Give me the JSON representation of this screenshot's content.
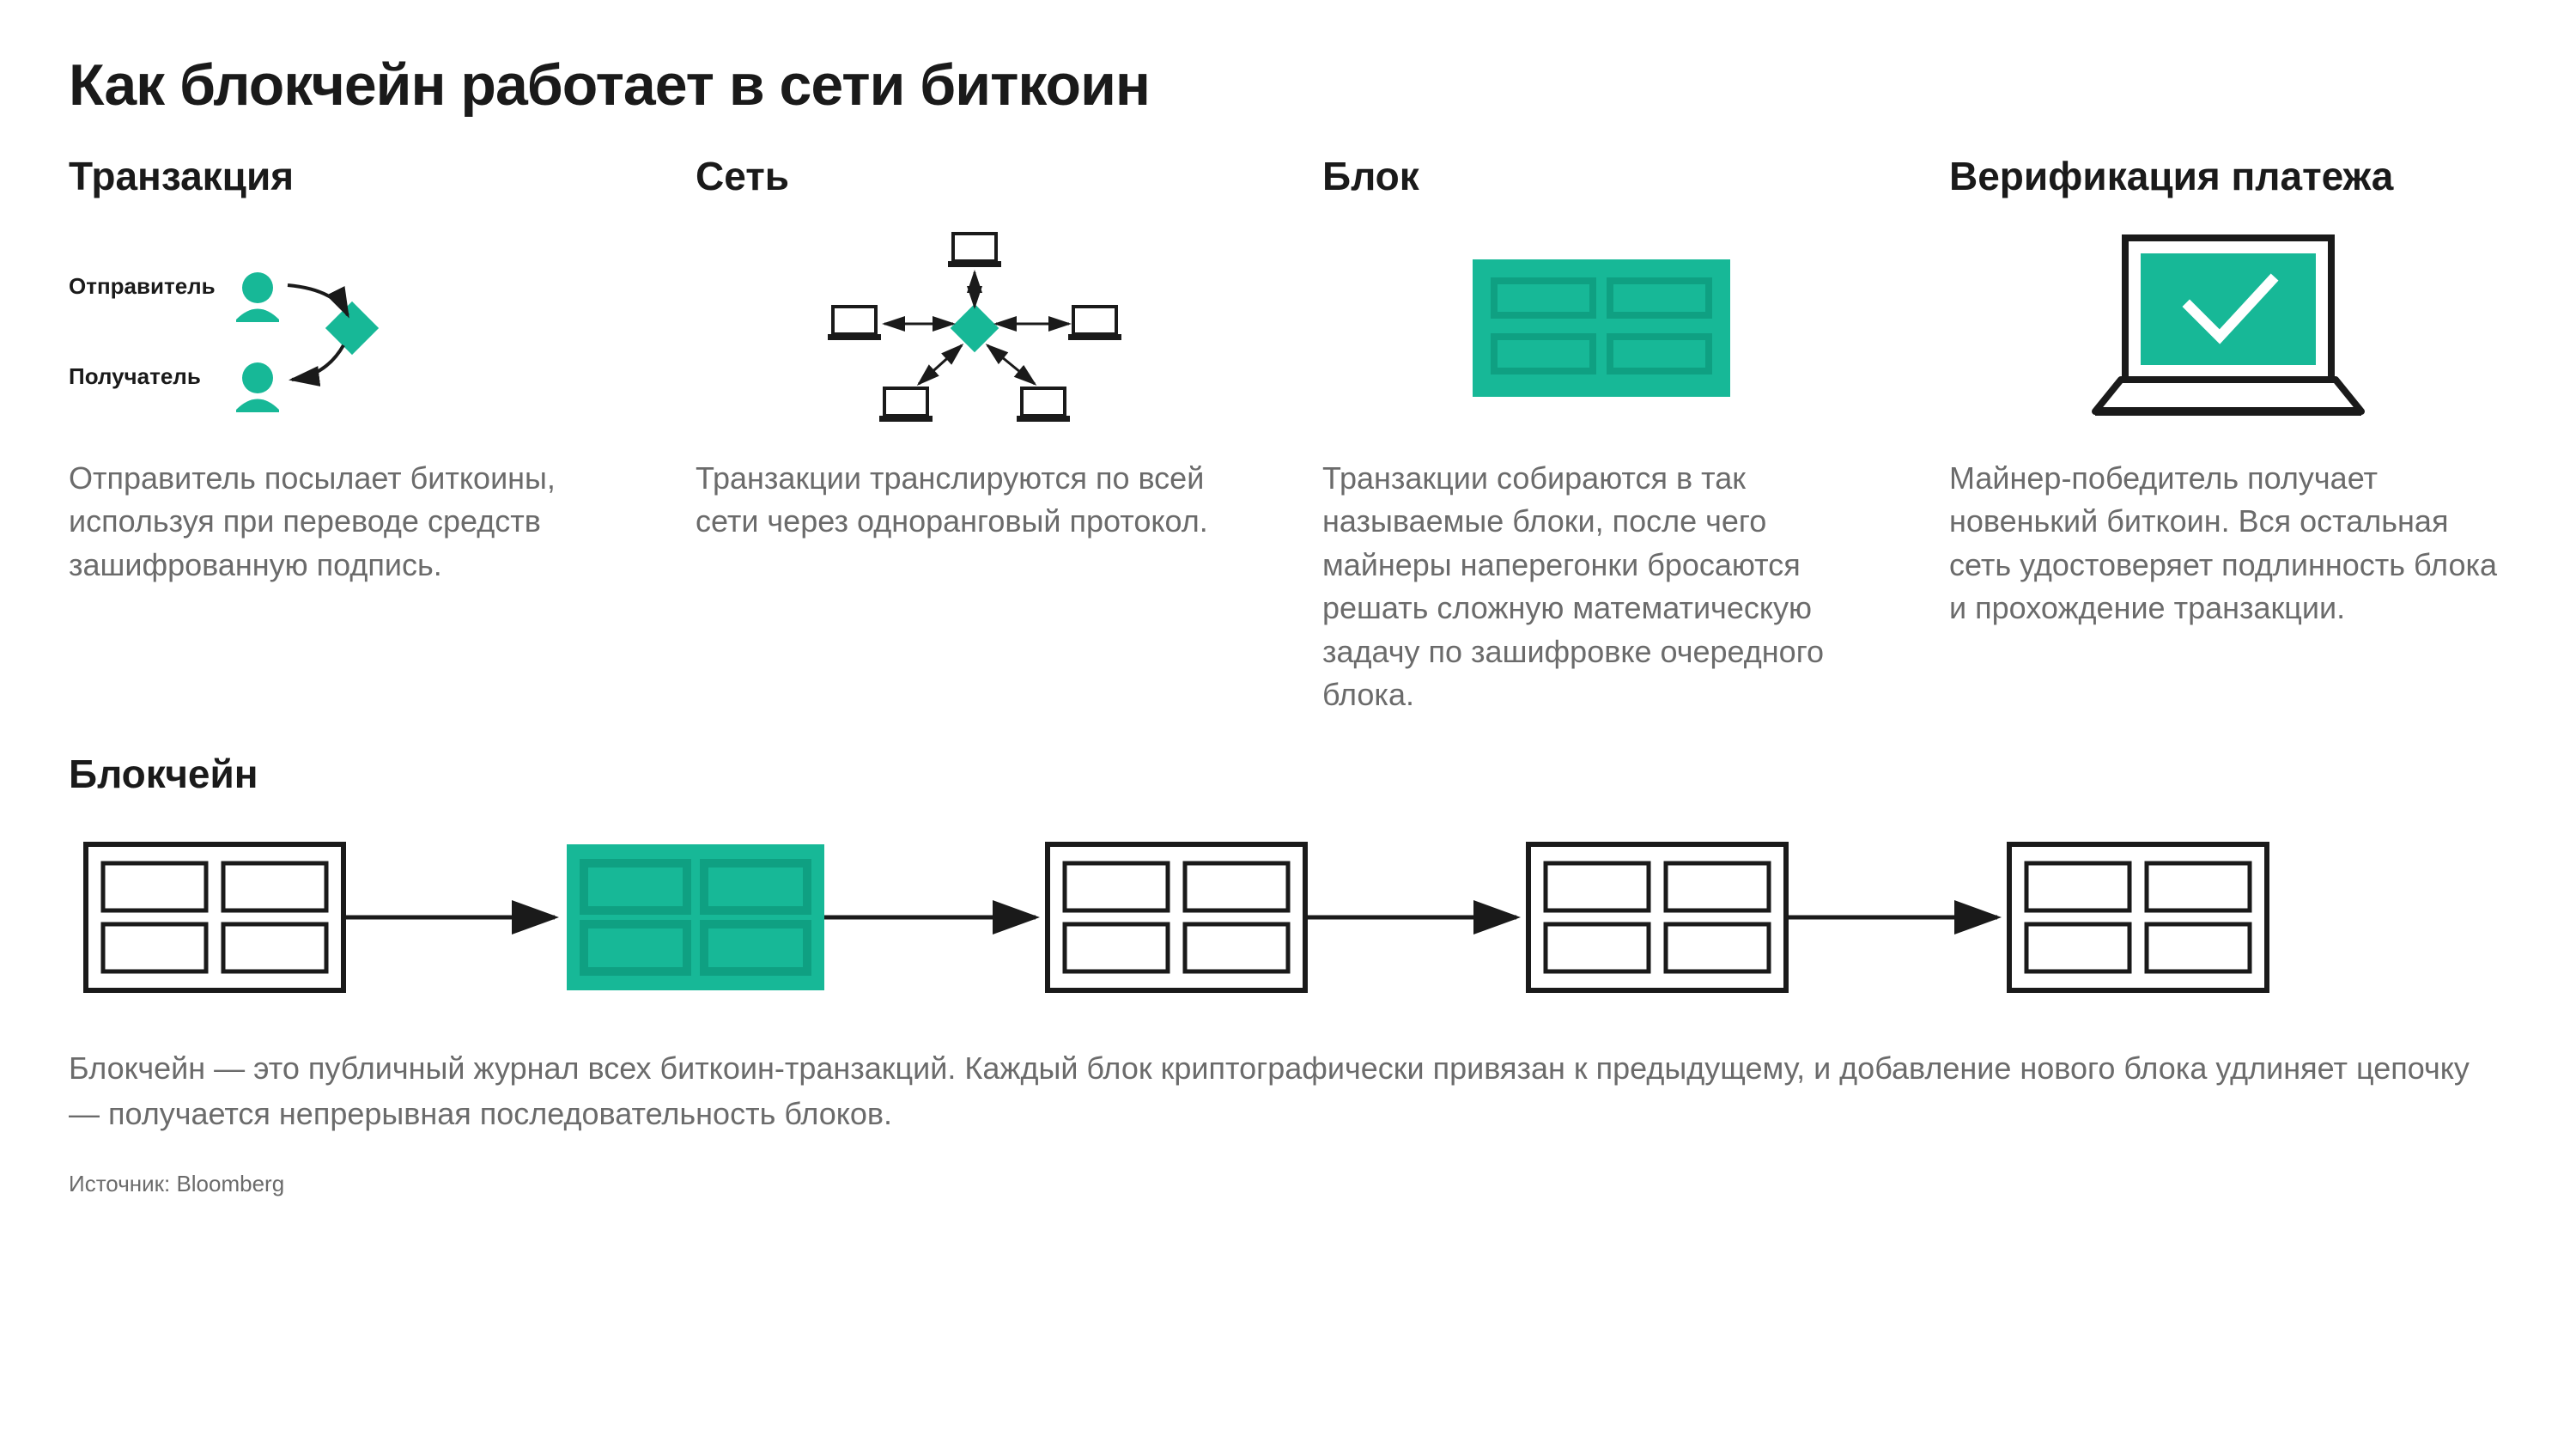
{
  "title": "Как блокчейн работает в сети биткоин",
  "colors": {
    "accent": "#17b897",
    "accent_dark": "#0fa082",
    "stroke": "#1a1a1a",
    "stroke_light": "#4a4a4a",
    "text": "#1a1a1a",
    "text_muted": "#6b6b6b",
    "bg": "#ffffff"
  },
  "steps": [
    {
      "heading": "Транзакция",
      "labels": {
        "sender": "Отправитель",
        "receiver": "Получатель"
      },
      "desc": "Отправитель посылает биткоины, используя при переводе средств зашифрованную подпись."
    },
    {
      "heading": "Сеть",
      "desc": "Транзакции транслируются по всей сети через одноранговый протокол."
    },
    {
      "heading": "Блок",
      "desc": "Транзакции собираются в так называемые блоки, после чего майнеры наперегонки бросаются решать сложную матема­ти­ческую задачу по зашифровке очередного блока."
    },
    {
      "heading": "Верификация платежа",
      "desc": "Майнер-победитель получает новенький биткоин. Вся остальная сеть удостоверяет подлинность блока и прохождение транзакции."
    }
  ],
  "chain": {
    "heading": "Блокчейн",
    "desc": "Блокчейн — это публичный журнал всех биткоин-транзакций. Каждый блок криптографически привязан к предыдущему, и добавление нового блока удлиняет цепочку — получается непрерывная последовательность блоков.",
    "blocks": [
      {
        "filled": false
      },
      {
        "filled": true
      },
      {
        "filled": false
      },
      {
        "filled": false
      },
      {
        "filled": false
      }
    ]
  },
  "source": "Источник: Bloomberg",
  "style": {
    "title_fontsize": 68,
    "heading_fontsize": 46,
    "body_fontsize": 36,
    "label_fontsize": 26,
    "source_fontsize": 26,
    "block_stroke_width": 6,
    "arrow_stroke_width": 4
  }
}
